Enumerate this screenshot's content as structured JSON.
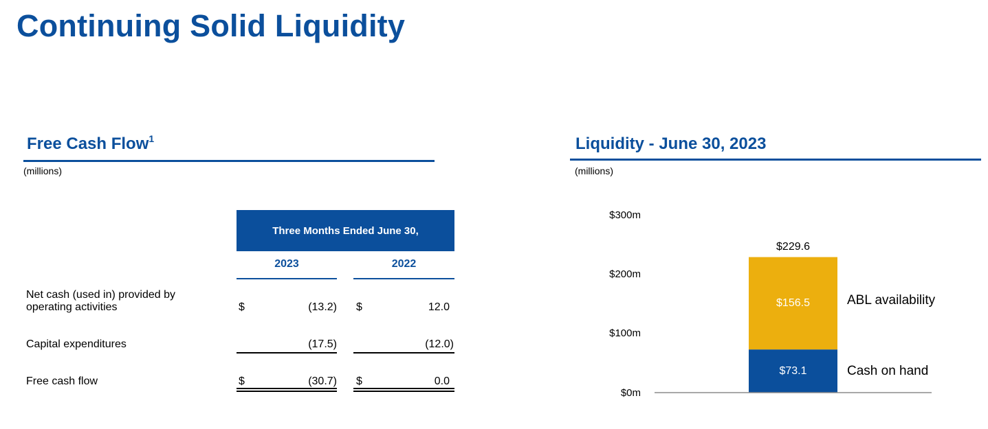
{
  "title": "Continuing Solid Liquidity",
  "fcf": {
    "heading": "Free Cash Flow",
    "footnote_mark": "1",
    "units": "(millions)",
    "period_header": "Three Months Ended June 30,",
    "years": [
      "2023",
      "2022"
    ],
    "rows": [
      {
        "label_lines": [
          "Net cash (used in) provided by",
          "operating activities"
        ],
        "cur": [
          "$",
          "$"
        ],
        "values": [
          "(13.2)",
          "12.0"
        ]
      },
      {
        "label_lines": [
          "Capital expenditures"
        ],
        "cur": [
          "",
          ""
        ],
        "values": [
          "(17.5)",
          "(12.0)"
        ]
      },
      {
        "label_lines": [
          "Free cash flow"
        ],
        "cur": [
          "$",
          "$"
        ],
        "values": [
          "(30.7)",
          "0.0"
        ]
      }
    ]
  },
  "liquidity": {
    "heading": "Liquidity - June 30, 2023",
    "units": "(millions)"
  },
  "chart_data": {
    "type": "bar",
    "stacked": true,
    "categories": [
      ""
    ],
    "series": [
      {
        "name": "Cash on hand",
        "values": [
          73.1
        ],
        "label": "$73.1",
        "color": "#0B4F9C"
      },
      {
        "name": "ABL availability",
        "values": [
          156.5
        ],
        "label": "$156.5",
        "color": "#ECAF0E"
      }
    ],
    "total": {
      "value": 229.6,
      "label": "$229.6"
    },
    "ylim": [
      0,
      300
    ],
    "yticks": [
      {
        "value": 0,
        "label": "$0m"
      },
      {
        "value": 100,
        "label": "$100m"
      },
      {
        "value": 200,
        "label": "$200m"
      },
      {
        "value": 300,
        "label": "$300m"
      }
    ],
    "legend": "right-of-bar",
    "grid": false
  }
}
